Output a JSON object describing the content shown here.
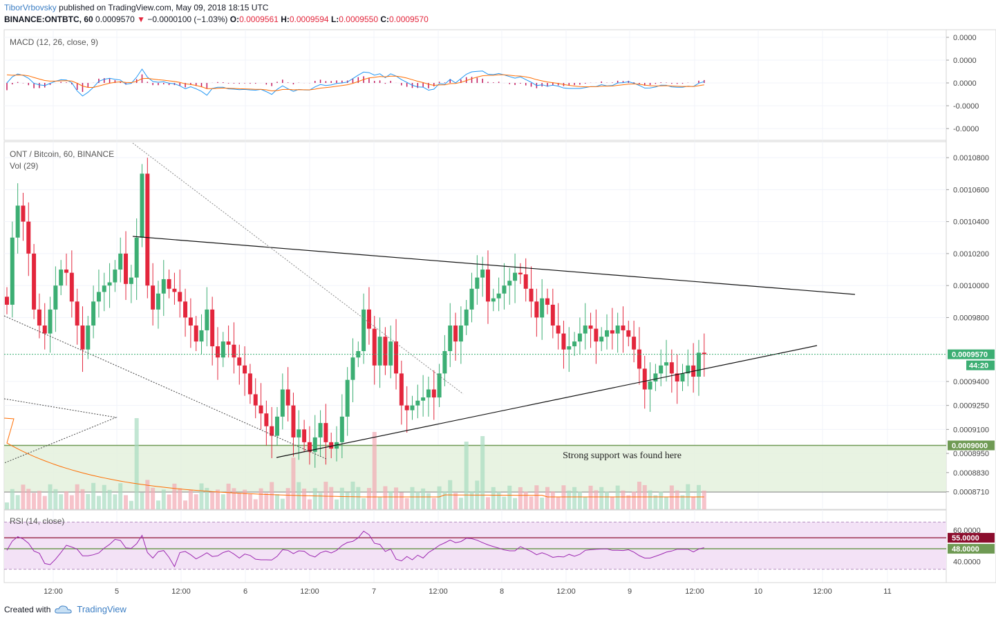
{
  "header": {
    "author": "TiborVrbovsky",
    "published": "published on TradingView.com, May 09, 2018 18:15 UTC",
    "symbol": "BINANCE:ONTBTC, 60",
    "last": "0.0009570",
    "change": "−0.0000100 (−1.03%)",
    "o_label": "O:",
    "o": "0.0009561",
    "h_label": "H:",
    "h": "0.0009594",
    "l_label": "L:",
    "l": "0.0009550",
    "c_label": "C:",
    "c": "0.0009570"
  },
  "macd_pane": {
    "label": "MACD (12, 26, close, 9)",
    "ticks": [
      "0.0000",
      "0.0000",
      "0.0000",
      "-0.0000",
      "-0.0000"
    ]
  },
  "price_pane": {
    "title": "ONT / Bitcoin, 60, BINANCE",
    "vol_label": "Vol (29)",
    "ticks": [
      "0.0010800",
      "0.0010600",
      "0.0010400",
      "0.0010200",
      "0.0010000",
      "0.0009800",
      "0.0009400",
      "0.0009250",
      "0.0009100",
      "0.0008950",
      "0.0008830",
      "0.0008710"
    ],
    "last_price_label": "0.0009570",
    "countdown": "44:20",
    "support_label": "0.0009000",
    "annotation": "Strong support was found here"
  },
  "rsi_pane": {
    "label": "RSI (14, close)",
    "ticks": [
      "60.0000",
      "40.0000"
    ],
    "level_upper": "55.0000",
    "level_lower": "48.0000"
  },
  "time_axis": [
    "12:00",
    "5",
    "12:00",
    "6",
    "12:00",
    "7",
    "12:00",
    "8",
    "12:00",
    "9",
    "12:00",
    "10",
    "12:00",
    "11"
  ],
  "footer": {
    "created_with": "Created with",
    "brand": "TradingView"
  },
  "colors": {
    "up": "#3cae73",
    "down": "#e3263c",
    "macd": "#2196f3",
    "signal": "#ff6d00",
    "hist": "#c2185b",
    "rsi": "#9c27b0",
    "support_fill": "#e4f1dd",
    "support_line": "#6f9a54",
    "rsi_fill": "#f3e2f6",
    "rsi_upper_line": "#8b0d2d",
    "rsi_lower_line": "#6f9a54"
  },
  "chart_data": {
    "type": "candlestick",
    "title": "ONT / Bitcoin, 60, BINANCE",
    "x_axis": "time (hourly candles), May 4 – May 9, 2018",
    "y_axis": "price (BTC)",
    "ylim": [
      0.00086,
      0.00109
    ],
    "last_close": 0.000957,
    "support_level": 0.0009,
    "rsi_levels": [
      55,
      48
    ],
    "rsi_range": [
      30,
      70
    ],
    "closes": [
      0.000988,
      0.00103,
      0.00105,
      0.00104,
      0.00102,
      0.000985,
      0.000975,
      0.00097,
      0.000985,
      0.001,
      0.00101,
      0.001008,
      0.00099,
      0.000975,
      0.00096,
      0.000975,
      0.00099,
      0.000996,
      0.001,
      0.001002,
      0.00101,
      0.00102,
      0.001001,
      0.001005,
      0.00103,
      0.00107,
      0.001,
      0.000985,
      0.000995,
      0.001004,
      0.000998,
      0.000996,
      0.00099,
      0.00098,
      0.000975,
      0.000965,
      0.000972,
      0.000985,
      0.000962,
      0.000955,
      0.000965,
      0.000963,
      0.000955,
      0.00095,
      0.000945,
      0.000932,
      0.000925,
      0.00092,
      0.000912,
      0.000906,
      0.000918,
      0.000935,
      0.000925,
      0.000905,
      0.00091,
      0.000902,
      0.000896,
      0.000905,
      0.000914,
      0.000902,
      0.000898,
      0.000902,
      0.000918,
      0.000941,
      0.000955,
      0.000959,
      0.000985,
      0.000973,
      0.00095,
      0.000968,
      0.00095,
      0.000965,
      0.000945,
      0.000925,
      0.000922,
      0.000925,
      0.000928,
      0.00093,
      0.000935,
      0.00093,
      0.000945,
      0.000959,
      0.000975,
      0.000965,
      0.000975,
      0.000985,
      0.000998,
      0.001005,
      0.00101,
      0.00099,
      0.000992,
      0.000995,
      0.001,
      0.001003,
      0.001008,
      0.001007,
      0.000998,
      0.00099,
      0.00098,
      0.000992,
      0.000988,
      0.000975,
      0.00097,
      0.00096,
      0.000962,
      0.000965,
      0.00097,
      0.000975,
      0.000973,
      0.000965,
      0.000968,
      0.000972,
      0.00097,
      0.000975,
      0.000972,
      0.000968,
      0.00096,
      0.000948,
      0.000935,
      0.00094,
      0.000945,
      0.00095,
      0.000952,
      0.000945,
      0.00094,
      0.000945,
      0.00095,
      0.000943,
      0.000958,
      0.000957
    ]
  }
}
